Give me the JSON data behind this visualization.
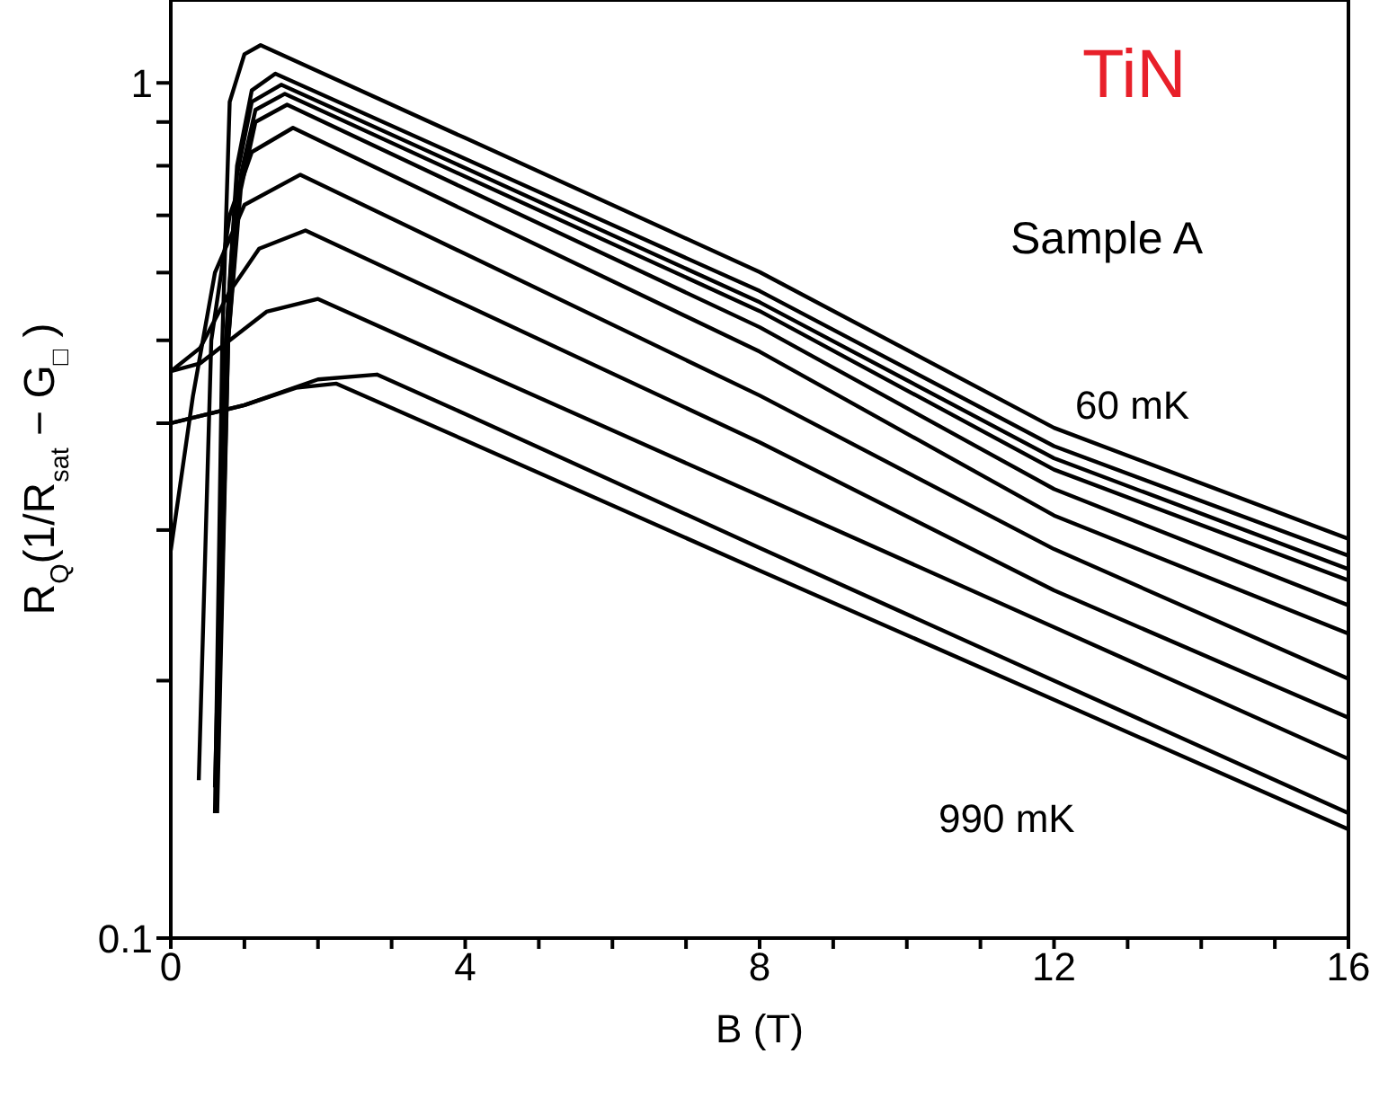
{
  "chart_data": {
    "type": "line",
    "xlabel": "B (T)",
    "ylabel": "R$_{Q}$(1/R$_{sat}$ − G$_{□}$ )",
    "log": "y",
    "xlim": [
      0,
      16
    ],
    "xticks": [
      0,
      {
        "value": 1,
        "label": null
      },
      {
        "value": 2,
        "label": null
      },
      {
        "value": 3,
        "label": null
      },
      4,
      {
        "value": 5,
        "label": null
      },
      {
        "value": 6,
        "label": null
      },
      {
        "value": 7,
        "label": null
      },
      8,
      {
        "value": 9,
        "label": null
      },
      {
        "value": 10,
        "label": null
      },
      {
        "value": 11,
        "label": null
      },
      12,
      {
        "value": 13,
        "label": null
      },
      {
        "value": 14,
        "label": null
      },
      {
        "value": 15,
        "label": null
      },
      16
    ],
    "ylim": [
      0.1,
      1.25
    ],
    "yticks": [
      0.1,
      {
        "value": 0.2,
        "label": null
      },
      {
        "value": 0.3,
        "label": null
      },
      {
        "value": 0.4,
        "label": null
      },
      {
        "value": 0.5,
        "label": null
      },
      {
        "value": 0.6,
        "label": null
      },
      {
        "value": 0.7,
        "label": null
      },
      {
        "value": 0.8,
        "label": null
      },
      {
        "value": 0.9,
        "label": null
      },
      1
    ],
    "annotations": [
      "TiN",
      "Sample A",
      "60 mK",
      "990 mK"
    ],
    "series": [
      {
        "color": "#000000",
        "x": [
          0.6,
          0.7,
          0.8,
          1.0,
          1.22,
          4,
          8,
          12,
          16
        ],
        "values": [
          0.14,
          0.5,
          0.95,
          1.08,
          1.107,
          0.862,
          0.601,
          0.395,
          0.293
        ]
      },
      {
        "color": "#000000",
        "x": [
          0.62,
          0.75,
          0.9,
          1.1,
          1.42,
          4,
          8,
          12,
          16
        ],
        "values": [
          0.14,
          0.5,
          0.8,
          0.98,
          1.025,
          0.815,
          0.571,
          0.376,
          0.28
        ]
      },
      {
        "color": "#000000",
        "x": [
          0.6,
          0.75,
          0.9,
          1.1,
          1.5,
          4,
          8,
          12,
          16
        ],
        "values": [
          0.15,
          0.5,
          0.78,
          0.95,
          0.995,
          0.795,
          0.554,
          0.364,
          0.27
        ]
      },
      {
        "color": "#000000",
        "x": [
          0.63,
          0.78,
          0.95,
          1.15,
          1.55,
          4,
          8,
          12,
          16
        ],
        "values": [
          0.14,
          0.5,
          0.78,
          0.93,
          0.971,
          0.777,
          0.541,
          0.353,
          0.262
        ]
      },
      {
        "color": "#000000",
        "x": [
          0.62,
          0.78,
          0.95,
          1.15,
          1.58,
          4,
          8,
          12,
          16
        ],
        "values": [
          0.145,
          0.5,
          0.75,
          0.9,
          0.943,
          0.752,
          0.518,
          0.335,
          0.245
        ]
      },
      {
        "color": "#000000",
        "x": [
          0.38,
          0.55,
          0.8,
          1.1,
          1.66,
          4,
          8,
          12,
          16
        ],
        "values": [
          0.153,
          0.5,
          0.7,
          0.83,
          0.886,
          0.709,
          0.485,
          0.312,
          0.227
        ]
      },
      {
        "color": "#000000",
        "x": [
          0,
          0.3,
          0.6,
          1.0,
          1.76,
          4,
          8,
          12,
          16
        ],
        "values": [
          0.284,
          0.43,
          0.6,
          0.72,
          0.781,
          0.631,
          0.431,
          0.285,
          0.201
        ]
      },
      {
        "color": "#000000",
        "x": [
          0,
          0.4,
          0.8,
          1.2,
          1.83,
          4,
          8,
          12,
          16
        ],
        "values": [
          0.46,
          0.49,
          0.57,
          0.64,
          0.672,
          0.55,
          0.38,
          0.255,
          0.181
        ]
      },
      {
        "color": "#000000",
        "x": [
          0,
          0.4,
          0.8,
          1.3,
          2.0,
          4,
          8,
          12,
          16
        ],
        "values": [
          0.46,
          0.47,
          0.5,
          0.54,
          0.559,
          0.468,
          0.329,
          0.231,
          0.162
        ]
      },
      {
        "color": "#000000",
        "x": [
          0,
          1,
          2,
          2.8,
          4,
          8,
          12,
          16
        ],
        "values": [
          0.4,
          0.42,
          0.45,
          0.456,
          0.41,
          0.286,
          0.2,
          0.14
        ]
      },
      {
        "color": "#000000",
        "x": [
          0,
          1,
          1.7,
          2.25,
          4,
          8,
          12,
          16
        ],
        "values": [
          0.4,
          0.42,
          0.44,
          0.445,
          0.382,
          0.269,
          0.19,
          0.134
        ]
      }
    ]
  }
}
